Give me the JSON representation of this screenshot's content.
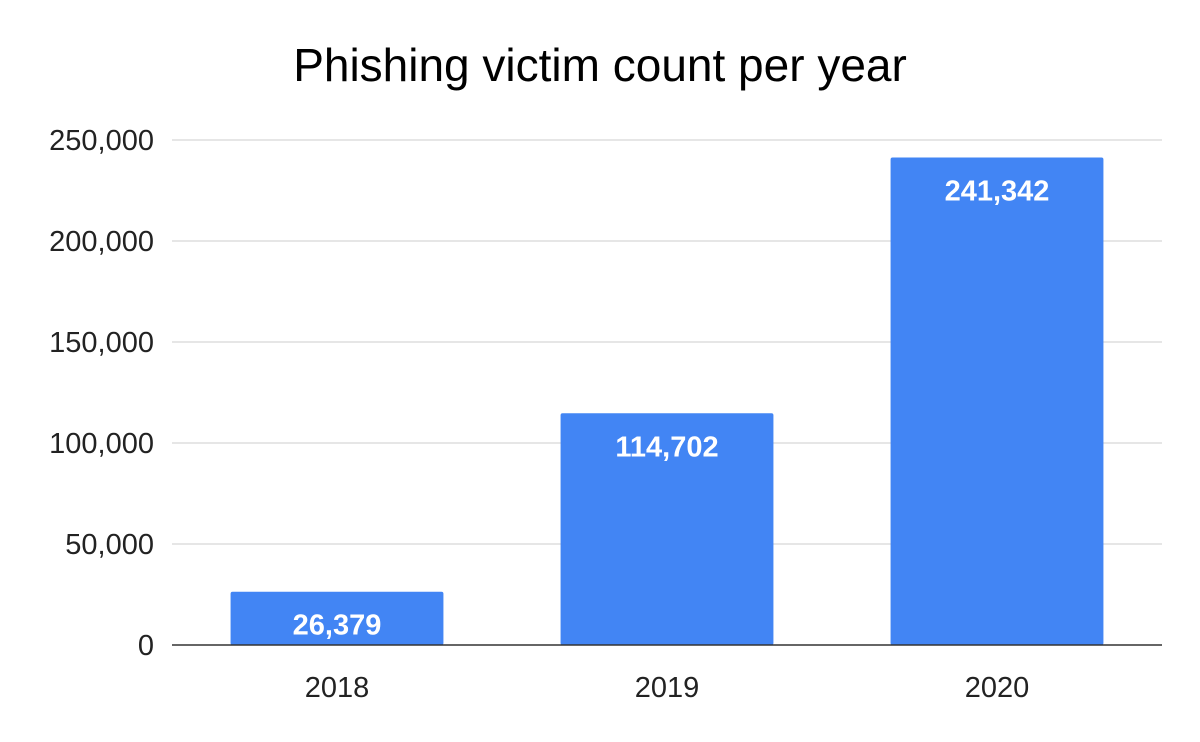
{
  "chart_data": {
    "type": "bar",
    "title": "Phishing victim count per year",
    "categories": [
      "2018",
      "2019",
      "2020"
    ],
    "values": [
      26379,
      114702,
      241342
    ],
    "data_labels": [
      "26,379",
      "114,702",
      "241,342"
    ],
    "xlabel": "",
    "ylabel": "",
    "ylim": [
      0,
      250000
    ],
    "yticks": [
      0,
      50000,
      100000,
      150000,
      200000,
      250000
    ],
    "ytick_labels": [
      "0",
      "50,000",
      "100,000",
      "150,000",
      "200,000",
      "250,000"
    ],
    "grid": true,
    "legend": "none",
    "colors": {
      "bar": "#4285f4",
      "grid": "#cccccc",
      "axis": "#333333",
      "data_label": "#ffffff"
    }
  }
}
